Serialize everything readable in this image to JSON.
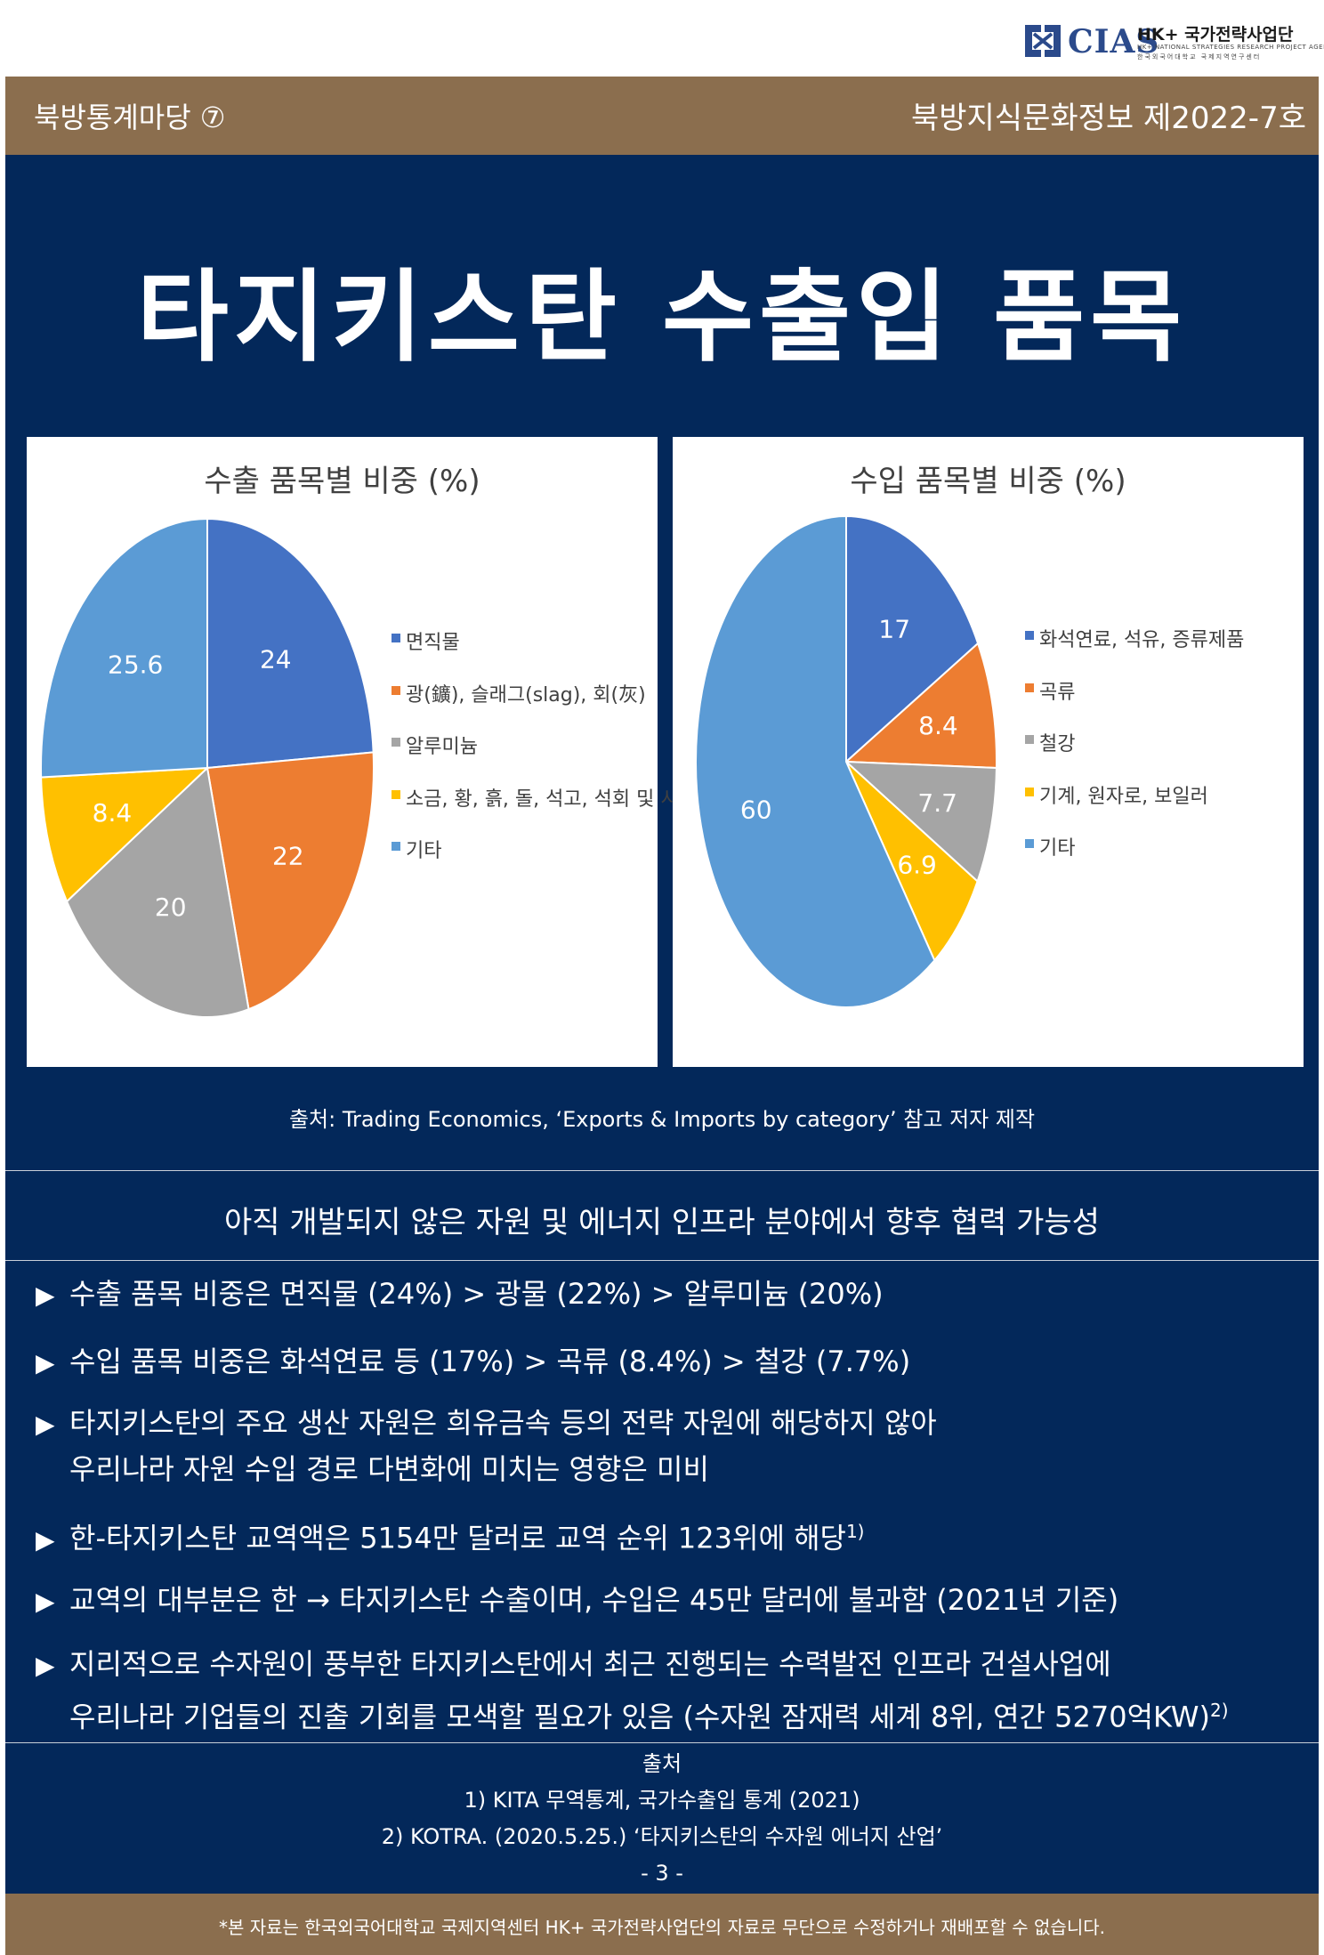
{
  "logo": {
    "name": "CIAS",
    "project": "HK+ 국가전략사업단",
    "sub_en": "HK+ NATIONAL STRATEGIES RESEARCH PROJECT AGENCY",
    "sub_ko": "한국외국어대학교 국제지역연구센터"
  },
  "header": {
    "series": "북방통계마당 ⑦",
    "issue": "북방지식문화정보 제2022-7호"
  },
  "title": "타지키스탄 수출입 품목",
  "chart_data": [
    {
      "type": "pie",
      "title": "수출 품목별 비중 (%)",
      "labels": [
        "면직물",
        "광(鑛), 슬래그(slag), 회(灰)",
        "알루미늄",
        "소금, 황, 흙, 돌, 석고, 석회 및 시멘트",
        "기타"
      ],
      "values": [
        24,
        22,
        20,
        8.4,
        25.6
      ],
      "colors": [
        "#4472c4",
        "#ed7d31",
        "#a5a5a5",
        "#ffc000",
        "#5b9bd5"
      ],
      "data_labels": [
        "24",
        "22",
        "20",
        "8.4",
        "25.6"
      ],
      "legend": "right"
    },
    {
      "type": "pie",
      "title": "수입 품목별 비중 (%)",
      "labels": [
        "화석연료, 석유, 증류제품",
        "곡류",
        "철강",
        "기계, 원자로, 보일러",
        "기타"
      ],
      "values": [
        17,
        8.4,
        7.7,
        6.9,
        60
      ],
      "colors": [
        "#4472c4",
        "#ed7d31",
        "#a5a5a5",
        "#ffc000",
        "#5b9bd5"
      ],
      "data_labels": [
        "17",
        "8.4",
        "7.7",
        "6.9",
        "60"
      ],
      "legend": "right"
    }
  ],
  "source": "출처: Trading Economics, ‘Exports & Imports by category’ 참고 저자 제작",
  "subtitle": "아직 개발되지 않은 자원 및 에너지 인프라 분야에서 향후 협력 가능성",
  "bullets": {
    "arrow": "▶",
    "b1": "수출 품목 비중은 면직물 (24%) > 광물 (22%) > 알루미늄 (20%)",
    "b2": "수입 품목 비중은 화석연료 등 (17%) > 곡류 (8.4%) > 철강 (7.7%)",
    "b3a": "타지키스탄의 주요 생산 자원은 희유금속 등의 전략 자원에 해당하지 않아",
    "b3b": "우리나라 자원 수입 경로 다변화에 미치는 영향은 미비",
    "b4": "한-타지키스탄 교역액은 5154만 달러로 교역 순위 123위에 해당",
    "b4_ref": "1)",
    "b5": "교역의 대부분은 한 → 타지키스탄 수출이며, 수입은 45만 달러에 불과함 (2021년 기준)",
    "b6a": "지리적으로 수자원이 풍부한 타지키스탄에서 최근 진행되는 수력발전 인프라 건설사업에",
    "b6b": "우리나라 기업들의 진출 기회를 모색할 필요가 있음 (수자원 잠재력 세계 8위, 연간 5270억KW)",
    "b6_ref": "2)"
  },
  "references": {
    "heading": "출처",
    "r1": "1) KITA 무역통계, 국가수출입 통계 (2021)",
    "r2": "2) KOTRA. (2020.5.25.) ‘타지키스탄의 수자원 에너지 산업’",
    "page": "-  3  -"
  },
  "footer": {
    "disclaimer": "*본 자료는 한국외국어대학교 국제지역센터 HK+ 국가전략사업단의 자료로 무단으로 수정하거나 재배포할 수 없습니다."
  }
}
